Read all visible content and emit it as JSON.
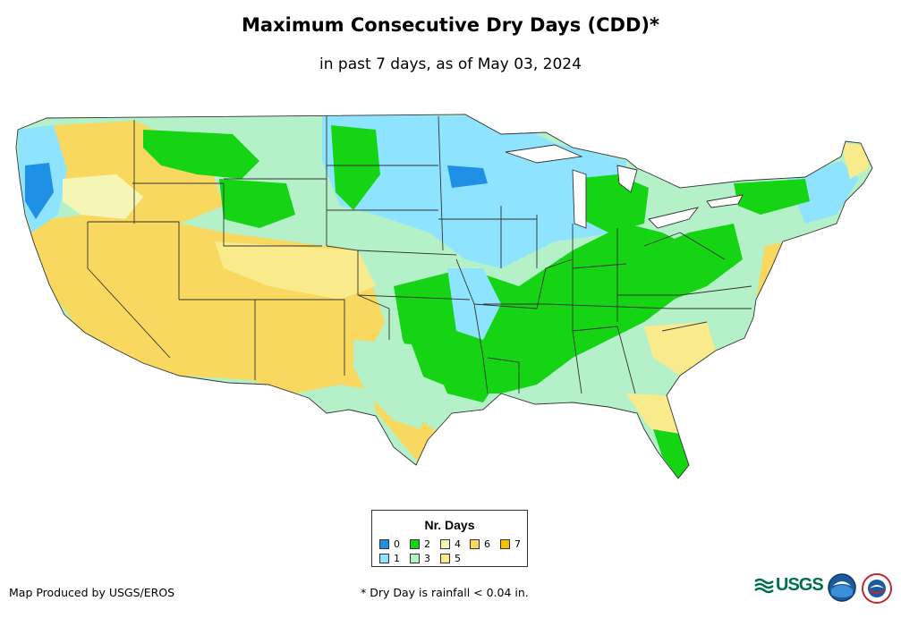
{
  "header": {
    "title": "Maximum Consecutive Dry Days (CDD)*",
    "subtitle": "in past 7 days, as of May 03, 2024"
  },
  "map": {
    "region": "Contiguous United States",
    "colors": {
      "0": "#1e90e6",
      "1": "#8ee4ff",
      "2": "#14d414",
      "3": "#b4f0c8",
      "4": "#f6f6b4",
      "5": "#f9ea8c",
      "6": "#f8d85e",
      "7": "#f5c000",
      "land": "#ffffff",
      "border": "#333333"
    }
  },
  "legend": {
    "title": "Nr. Days",
    "items": [
      {
        "label": "0",
        "color": "#1e90e6"
      },
      {
        "label": "1",
        "color": "#8ee4ff"
      },
      {
        "label": "2",
        "color": "#14d414"
      },
      {
        "label": "3",
        "color": "#b4f0c8"
      },
      {
        "label": "4",
        "color": "#f6f6b4"
      },
      {
        "label": "5",
        "color": "#f9ea8c"
      },
      {
        "label": "6",
        "color": "#f8d85e"
      },
      {
        "label": "7",
        "color": "#f5c000"
      }
    ]
  },
  "footer": {
    "credit": "Map Produced by USGS/EROS",
    "footnote": "* Dry Day is rainfall < 0.04 in.",
    "usgs_logo_text": "USGS",
    "logos": [
      "usgs-logo",
      "noaa-logo",
      "nws-logo"
    ]
  }
}
